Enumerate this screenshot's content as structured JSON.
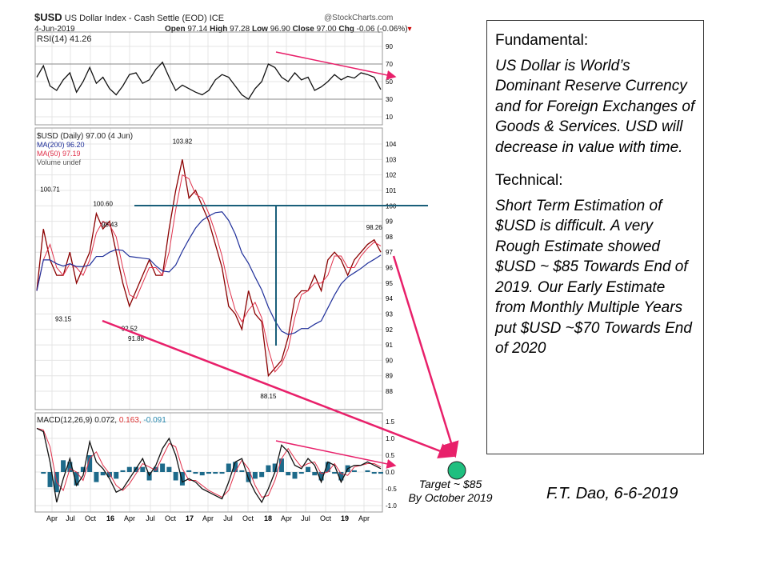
{
  "header": {
    "symbol": "$USD",
    "name": "US Dollar Index - Cash Settle (EOD)",
    "exchange": "ICE",
    "date": "4-Jun-2019",
    "credit": "@StockCharts.com",
    "open_label": "Open",
    "open": "97.14",
    "high_label": "High",
    "high": "97.28",
    "low_label": "Low",
    "low": "96.90",
    "close_label": "Close",
    "close": "97.00",
    "chg_label": "Chg",
    "chg": "-0.06 (-0.06%)"
  },
  "legend": {
    "rsi": "RSI(14) 41.26",
    "price": "$USD (Daily) 97.00 (4 Jun)",
    "ma200": "MA(200) 96.20",
    "ma50": "MA(50) 97.19",
    "volume": "Volume undef",
    "macd_a": "MACD(12,26,9) 0.072,",
    "macd_b": " 0.163,",
    "macd_c": " -0.091"
  },
  "colors": {
    "price": "#8b0000",
    "ma200": "#1f2f9a",
    "ma50": "#e0304a",
    "annotation": "#e8206a",
    "level": "#1a5f7a",
    "target": "#1fbf7f",
    "histogram": "#1d6a8a"
  },
  "chart_data": [
    {
      "type": "line",
      "title": "RSI(14)",
      "ylim": [
        10,
        90
      ],
      "yticks": [
        90,
        70,
        50,
        30,
        10
      ],
      "values": [
        55,
        68,
        45,
        40,
        52,
        60,
        38,
        50,
        66,
        48,
        55,
        42,
        35,
        45,
        58,
        60,
        48,
        52,
        64,
        72,
        55,
        40,
        46,
        42,
        38,
        35,
        40,
        52,
        58,
        55,
        45,
        35,
        30,
        42,
        50,
        70,
        66,
        55,
        50,
        60,
        52,
        55,
        40,
        44,
        50,
        58,
        52,
        56,
        54,
        60,
        58,
        55,
        41
      ]
    },
    {
      "type": "line",
      "title": "$USD (Daily)",
      "ylim": [
        88,
        104
      ],
      "yticks": [
        104,
        103,
        102,
        101,
        100,
        99,
        98,
        97,
        96,
        95,
        94,
        93,
        92,
        91,
        90,
        89,
        88
      ],
      "xticks": [
        "Apr",
        "Jul",
        "Oct",
        "16",
        "Apr",
        "Jul",
        "Oct",
        "17",
        "Apr",
        "Jul",
        "Oct",
        "18",
        "Apr",
        "Jul",
        "Oct",
        "19",
        "Apr"
      ],
      "values": [
        94.5,
        98.5,
        96.5,
        95.5,
        95.5,
        97,
        95,
        96,
        97,
        99.5,
        98.5,
        99,
        97,
        95,
        93.5,
        94.5,
        95.5,
        96.5,
        95.5,
        95.5,
        98.5,
        101,
        103,
        100.5,
        101,
        100,
        99,
        97.5,
        96,
        93.5,
        93,
        92,
        94.5,
        93,
        92.5,
        89,
        89.5,
        90,
        91.5,
        94,
        94.5,
        94.5,
        95.5,
        94.5,
        96.5,
        97,
        96.5,
        95.5,
        96.5,
        97,
        97.5,
        97.8,
        97
      ],
      "annotations": [
        "100.71",
        "98.43",
        "93.15",
        "92.52",
        "100.60",
        "91.88",
        "103.82",
        "88.15",
        "98.26"
      ]
    },
    {
      "type": "line",
      "title": "MACD(12,26,9)",
      "ylim": [
        -1,
        1.5
      ],
      "yticks": [
        "1.5",
        "1.0",
        "0.5",
        "0.0",
        "-0.5",
        "-1.0"
      ],
      "values": [
        1.3,
        1.2,
        0.3,
        -0.9,
        -0.2,
        0.4,
        -0.4,
        -0.1,
        0.9,
        0.3,
        0.1,
        -0.2,
        -0.6,
        -0.5,
        -0.2,
        0.1,
        0.4,
        -0.1,
        0.2,
        0.7,
        1.0,
        0.5,
        -0.3,
        -0.2,
        -0.3,
        -0.5,
        -0.6,
        -0.7,
        -0.8,
        -0.3,
        0.3,
        0.4,
        -0.2,
        -0.6,
        -0.9,
        -0.5,
        0.0,
        0.8,
        0.6,
        0.2,
        0.1,
        0.4,
        0.2,
        -0.3,
        0.3,
        0.2,
        -0.3,
        0.1,
        0.2,
        0.2,
        0.3,
        0.2,
        0.1
      ]
    }
  ],
  "box": {
    "fund_title": "Fundamental:",
    "fund_text": "US Dollar is World’s Dominant Reserve Currency and for Foreign Exchanges of Goods & Services.  USD will decrease in value with time.",
    "tech_title": "Technical:",
    "tech_text": "Short Term Estimation of $USD is difficult.  A very Rough Estimate showed $USD ~ $85 Towards End of 2019.  Our Early Estimate from Monthly Multiple Years put $USD ~$70 Towards End of 2020"
  },
  "target": {
    "line1": "Target ~ $85",
    "line2": "By October 2019"
  },
  "author": "F.T. Dao, 6-6-2019"
}
